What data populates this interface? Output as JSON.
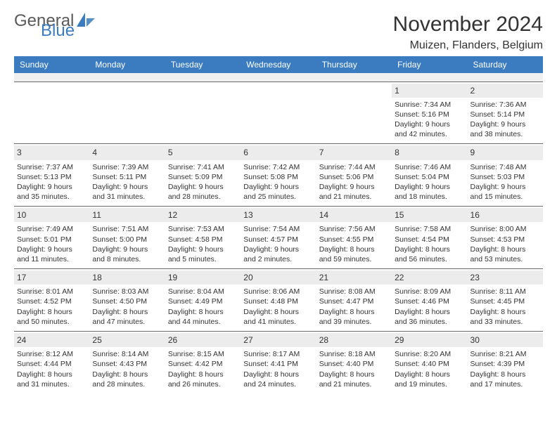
{
  "logo": {
    "text_general": "General",
    "text_blue": "Blue",
    "icon_color": "#3b7bbf"
  },
  "header": {
    "month_title": "November 2024",
    "location": "Muizen, Flanders, Belgium"
  },
  "colors": {
    "header_bg": "#3b7bbf",
    "header_fg": "#ffffff",
    "daynum_bg": "#ececec",
    "border": "#6a6a6a",
    "text": "#333333"
  },
  "days_of_week": [
    "Sunday",
    "Monday",
    "Tuesday",
    "Wednesday",
    "Thursday",
    "Friday",
    "Saturday"
  ],
  "weeks": [
    [
      null,
      null,
      null,
      null,
      null,
      {
        "n": "1",
        "sr": "Sunrise: 7:34 AM",
        "ss": "Sunset: 5:16 PM",
        "d1": "Daylight: 9 hours",
        "d2": "and 42 minutes."
      },
      {
        "n": "2",
        "sr": "Sunrise: 7:36 AM",
        "ss": "Sunset: 5:14 PM",
        "d1": "Daylight: 9 hours",
        "d2": "and 38 minutes."
      }
    ],
    [
      {
        "n": "3",
        "sr": "Sunrise: 7:37 AM",
        "ss": "Sunset: 5:13 PM",
        "d1": "Daylight: 9 hours",
        "d2": "and 35 minutes."
      },
      {
        "n": "4",
        "sr": "Sunrise: 7:39 AM",
        "ss": "Sunset: 5:11 PM",
        "d1": "Daylight: 9 hours",
        "d2": "and 31 minutes."
      },
      {
        "n": "5",
        "sr": "Sunrise: 7:41 AM",
        "ss": "Sunset: 5:09 PM",
        "d1": "Daylight: 9 hours",
        "d2": "and 28 minutes."
      },
      {
        "n": "6",
        "sr": "Sunrise: 7:42 AM",
        "ss": "Sunset: 5:08 PM",
        "d1": "Daylight: 9 hours",
        "d2": "and 25 minutes."
      },
      {
        "n": "7",
        "sr": "Sunrise: 7:44 AM",
        "ss": "Sunset: 5:06 PM",
        "d1": "Daylight: 9 hours",
        "d2": "and 21 minutes."
      },
      {
        "n": "8",
        "sr": "Sunrise: 7:46 AM",
        "ss": "Sunset: 5:04 PM",
        "d1": "Daylight: 9 hours",
        "d2": "and 18 minutes."
      },
      {
        "n": "9",
        "sr": "Sunrise: 7:48 AM",
        "ss": "Sunset: 5:03 PM",
        "d1": "Daylight: 9 hours",
        "d2": "and 15 minutes."
      }
    ],
    [
      {
        "n": "10",
        "sr": "Sunrise: 7:49 AM",
        "ss": "Sunset: 5:01 PM",
        "d1": "Daylight: 9 hours",
        "d2": "and 11 minutes."
      },
      {
        "n": "11",
        "sr": "Sunrise: 7:51 AM",
        "ss": "Sunset: 5:00 PM",
        "d1": "Daylight: 9 hours",
        "d2": "and 8 minutes."
      },
      {
        "n": "12",
        "sr": "Sunrise: 7:53 AM",
        "ss": "Sunset: 4:58 PM",
        "d1": "Daylight: 9 hours",
        "d2": "and 5 minutes."
      },
      {
        "n": "13",
        "sr": "Sunrise: 7:54 AM",
        "ss": "Sunset: 4:57 PM",
        "d1": "Daylight: 9 hours",
        "d2": "and 2 minutes."
      },
      {
        "n": "14",
        "sr": "Sunrise: 7:56 AM",
        "ss": "Sunset: 4:55 PM",
        "d1": "Daylight: 8 hours",
        "d2": "and 59 minutes."
      },
      {
        "n": "15",
        "sr": "Sunrise: 7:58 AM",
        "ss": "Sunset: 4:54 PM",
        "d1": "Daylight: 8 hours",
        "d2": "and 56 minutes."
      },
      {
        "n": "16",
        "sr": "Sunrise: 8:00 AM",
        "ss": "Sunset: 4:53 PM",
        "d1": "Daylight: 8 hours",
        "d2": "and 53 minutes."
      }
    ],
    [
      {
        "n": "17",
        "sr": "Sunrise: 8:01 AM",
        "ss": "Sunset: 4:52 PM",
        "d1": "Daylight: 8 hours",
        "d2": "and 50 minutes."
      },
      {
        "n": "18",
        "sr": "Sunrise: 8:03 AM",
        "ss": "Sunset: 4:50 PM",
        "d1": "Daylight: 8 hours",
        "d2": "and 47 minutes."
      },
      {
        "n": "19",
        "sr": "Sunrise: 8:04 AM",
        "ss": "Sunset: 4:49 PM",
        "d1": "Daylight: 8 hours",
        "d2": "and 44 minutes."
      },
      {
        "n": "20",
        "sr": "Sunrise: 8:06 AM",
        "ss": "Sunset: 4:48 PM",
        "d1": "Daylight: 8 hours",
        "d2": "and 41 minutes."
      },
      {
        "n": "21",
        "sr": "Sunrise: 8:08 AM",
        "ss": "Sunset: 4:47 PM",
        "d1": "Daylight: 8 hours",
        "d2": "and 39 minutes."
      },
      {
        "n": "22",
        "sr": "Sunrise: 8:09 AM",
        "ss": "Sunset: 4:46 PM",
        "d1": "Daylight: 8 hours",
        "d2": "and 36 minutes."
      },
      {
        "n": "23",
        "sr": "Sunrise: 8:11 AM",
        "ss": "Sunset: 4:45 PM",
        "d1": "Daylight: 8 hours",
        "d2": "and 33 minutes."
      }
    ],
    [
      {
        "n": "24",
        "sr": "Sunrise: 8:12 AM",
        "ss": "Sunset: 4:44 PM",
        "d1": "Daylight: 8 hours",
        "d2": "and 31 minutes."
      },
      {
        "n": "25",
        "sr": "Sunrise: 8:14 AM",
        "ss": "Sunset: 4:43 PM",
        "d1": "Daylight: 8 hours",
        "d2": "and 28 minutes."
      },
      {
        "n": "26",
        "sr": "Sunrise: 8:15 AM",
        "ss": "Sunset: 4:42 PM",
        "d1": "Daylight: 8 hours",
        "d2": "and 26 minutes."
      },
      {
        "n": "27",
        "sr": "Sunrise: 8:17 AM",
        "ss": "Sunset: 4:41 PM",
        "d1": "Daylight: 8 hours",
        "d2": "and 24 minutes."
      },
      {
        "n": "28",
        "sr": "Sunrise: 8:18 AM",
        "ss": "Sunset: 4:40 PM",
        "d1": "Daylight: 8 hours",
        "d2": "and 21 minutes."
      },
      {
        "n": "29",
        "sr": "Sunrise: 8:20 AM",
        "ss": "Sunset: 4:40 PM",
        "d1": "Daylight: 8 hours",
        "d2": "and 19 minutes."
      },
      {
        "n": "30",
        "sr": "Sunrise: 8:21 AM",
        "ss": "Sunset: 4:39 PM",
        "d1": "Daylight: 8 hours",
        "d2": "and 17 minutes."
      }
    ]
  ]
}
